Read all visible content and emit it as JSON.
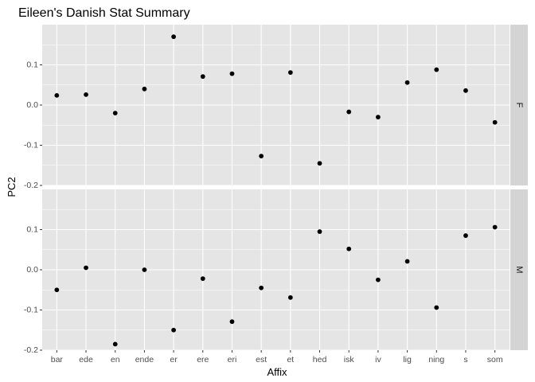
{
  "chart_data": {
    "type": "scatter",
    "title": "Eileen's Danish Stat Summary",
    "xlabel": "Affix",
    "ylabel": "PC2",
    "categories": [
      "bar",
      "ede",
      "en",
      "ende",
      "er",
      "ere",
      "eri",
      "est",
      "et",
      "hed",
      "isk",
      "iv",
      "lig",
      "ning",
      "s",
      "som"
    ],
    "ylim": [
      -0.2,
      0.2
    ],
    "yticks": [
      -0.2,
      -0.1,
      0.0,
      0.1
    ],
    "ytick_labels": [
      "-0.2",
      "-0.1",
      "0.0",
      "0.1"
    ],
    "grid": true,
    "facets": [
      {
        "label": "F",
        "points": [
          {
            "x": "bar",
            "y": 0.024
          },
          {
            "x": "ede",
            "y": 0.026
          },
          {
            "x": "en",
            "y": -0.02
          },
          {
            "x": "ende",
            "y": 0.04
          },
          {
            "x": "er",
            "y": 0.17
          },
          {
            "x": "ere",
            "y": 0.071
          },
          {
            "x": "eri",
            "y": 0.078
          },
          {
            "x": "est",
            "y": -0.127
          },
          {
            "x": "et",
            "y": 0.081
          },
          {
            "x": "isk",
            "y": -0.017
          },
          {
            "x": "iv",
            "y": -0.03
          },
          {
            "x": "lig",
            "y": 0.056
          },
          {
            "x": "ning",
            "y": 0.088
          },
          {
            "x": "s",
            "y": 0.036
          },
          {
            "x": "som",
            "y": -0.043
          },
          {
            "x": "hed",
            "y": -0.145
          }
        ]
      },
      {
        "label": "M",
        "points": [
          {
            "x": "bar",
            "y": -0.05
          },
          {
            "x": "ede",
            "y": 0.005
          },
          {
            "x": "en",
            "y": -0.185
          },
          {
            "x": "ende",
            "y": 0.0
          },
          {
            "x": "er",
            "y": -0.15
          },
          {
            "x": "ere",
            "y": -0.022
          },
          {
            "x": "eri",
            "y": -0.129
          },
          {
            "x": "est",
            "y": -0.045
          },
          {
            "x": "et",
            "y": -0.069
          },
          {
            "x": "hed",
            "y": 0.095
          },
          {
            "x": "isk",
            "y": 0.052
          },
          {
            "x": "iv",
            "y": -0.025
          },
          {
            "x": "lig",
            "y": 0.021
          },
          {
            "x": "ning",
            "y": -0.094
          },
          {
            "x": "s",
            "y": 0.085
          },
          {
            "x": "som",
            "y": 0.106
          }
        ]
      }
    ],
    "colors": {
      "panel_background": "#e5e5e5",
      "strip_background": "#d4d4d4",
      "grid": "#ffffff",
      "point": "#000000"
    }
  }
}
